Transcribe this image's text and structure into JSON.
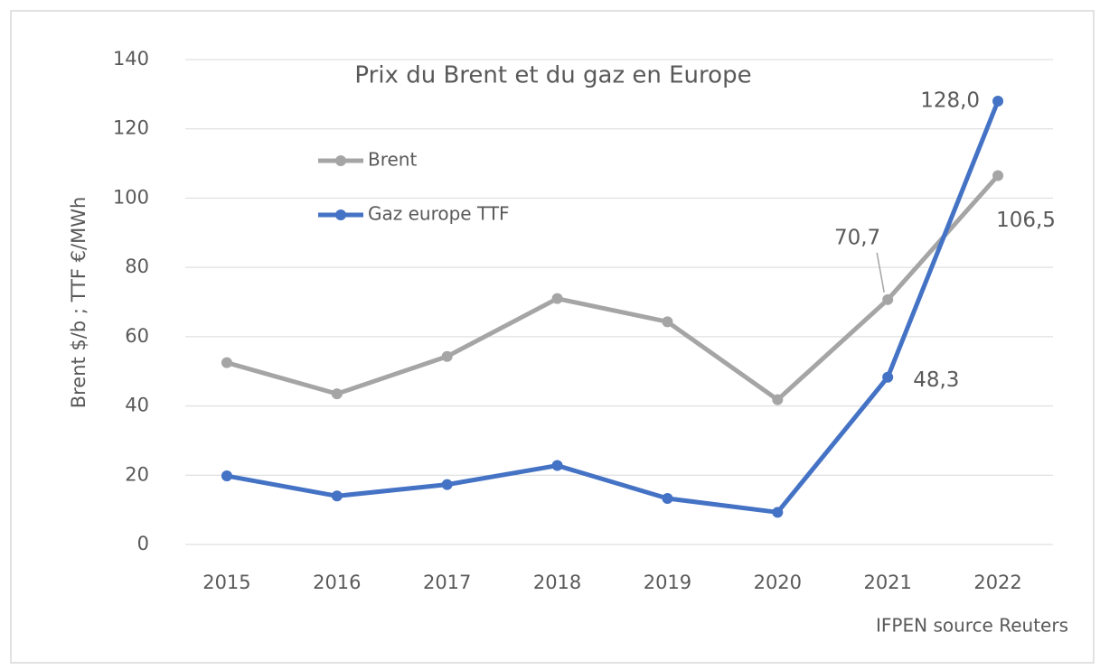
{
  "chart_data": {
    "type": "line",
    "title": "Prix du Brent et du gaz en Europe",
    "y_label": "Brent $/b ; TTF €/MWh",
    "source": "IFPEN source Reuters",
    "categories": [
      "2015",
      "2016",
      "2017",
      "2018",
      "2019",
      "2020",
      "2021",
      "2022"
    ],
    "series": [
      {
        "name": "Brent",
        "color": "#a5a5a5",
        "values": [
          52.5,
          43.5,
          54.3,
          71.0,
          64.3,
          41.8,
          70.7,
          106.5
        ],
        "value_labels": [
          null,
          null,
          null,
          null,
          null,
          null,
          "70,7",
          "106,5"
        ]
      },
      {
        "name": "Gaz europe TTF",
        "color": "#4472c4",
        "values": [
          19.8,
          14.0,
          17.3,
          22.8,
          13.3,
          9.3,
          48.3,
          128.0
        ],
        "value_labels": [
          null,
          null,
          null,
          null,
          null,
          null,
          "48,3",
          "128,0"
        ]
      }
    ],
    "ylim": [
      0,
      140
    ],
    "yticks": [
      0,
      20,
      40,
      60,
      80,
      100,
      120,
      140
    ],
    "grid": true,
    "legend": "upper-left"
  }
}
